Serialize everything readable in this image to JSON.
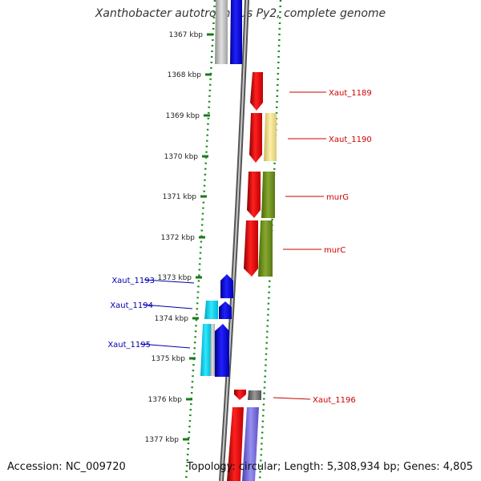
{
  "title": "Xanthobacter autotrophicus Py2, complete genome",
  "accession_text": "Accession: NC_009720",
  "topology_text": "Topology: circular; Length: 5,308,934 bp; Genes: 4,805",
  "colors": {
    "forward_strand_label": "#cc0000",
    "reverse_strand_label": "#0000aa",
    "tick": "#1a7a1a",
    "backbone": "#7f7f7f"
  },
  "ticks": [
    {
      "label": "1367 kbp"
    },
    {
      "label": "1368 kbp"
    },
    {
      "label": "1369 kbp"
    },
    {
      "label": "1370 kbp"
    },
    {
      "label": "1371 kbp"
    },
    {
      "label": "1372 kbp"
    },
    {
      "label": "1373 kbp"
    },
    {
      "label": "1374 kbp"
    },
    {
      "label": "1375 kbp"
    },
    {
      "label": "1376 kbp"
    },
    {
      "label": "1377 kbp"
    }
  ],
  "gene_labels": [
    {
      "text": "Xaut_1189",
      "strand": "forward"
    },
    {
      "text": "Xaut_1190",
      "strand": "forward"
    },
    {
      "text": "murG",
      "strand": "forward"
    },
    {
      "text": "murC",
      "strand": "forward"
    },
    {
      "text": "Xaut_1193",
      "strand": "reverse"
    },
    {
      "text": "Xaut_1194",
      "strand": "reverse"
    },
    {
      "text": "Xaut_1195",
      "strand": "reverse"
    },
    {
      "text": "Xaut_1196",
      "strand": "forward"
    }
  ]
}
